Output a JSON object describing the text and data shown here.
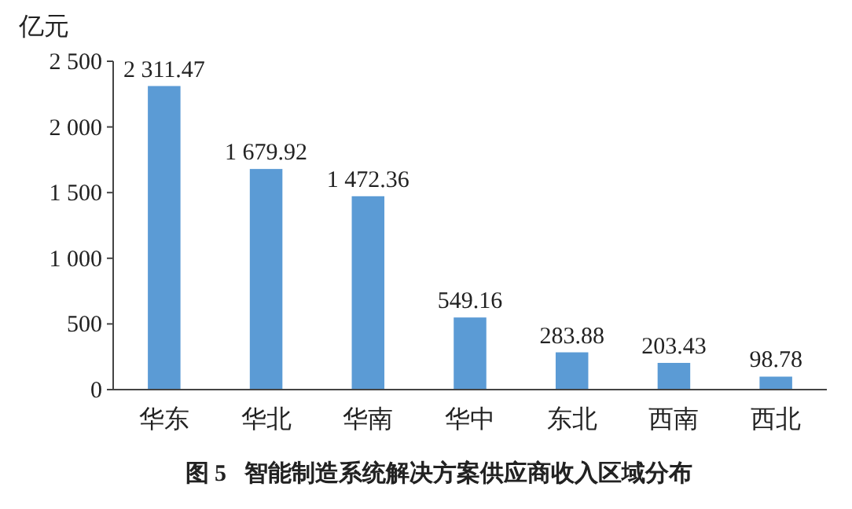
{
  "chart_data": {
    "type": "bar",
    "title": "图 5   智能制造系统解决方案供应商收入区域分布",
    "ylabel": "亿元",
    "categories": [
      "华东",
      "华北",
      "华南",
      "华中",
      "东北",
      "西南",
      "西北"
    ],
    "values": [
      2311.47,
      1679.92,
      1472.36,
      549.16,
      283.88,
      203.43,
      98.78
    ],
    "value_labels": [
      "2 311.47",
      "1 679.92",
      "1 472.36",
      "549.16",
      "283.88",
      "203.43",
      "98.78"
    ],
    "color": "#5b9bd5",
    "ylim": [
      0,
      2500
    ],
    "yticks": [
      0,
      500,
      {
        "value": 1000,
        "label": "1 000"
      },
      {
        "value": 1500,
        "label": "1 500"
      },
      {
        "value": 2000,
        "label": "2 000"
      },
      {
        "value": 2500,
        "label": "2 500"
      }
    ],
    "grid": false
  }
}
